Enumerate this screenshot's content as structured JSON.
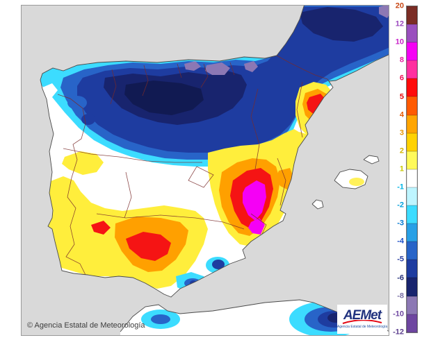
{
  "page": {
    "background_color": "#ffffff",
    "sea_color": "#d9d9d9",
    "land_color": "#ffffff"
  },
  "map": {
    "copyright": "© Agencia Estatal de Meteorología",
    "region_names": [
      "iberian-peninsula",
      "france",
      "north-africa",
      "balearic-islands"
    ]
  },
  "logo": {
    "acronym": "AEMet",
    "subtitle": "Agencia Estatal de Meteorología",
    "accent_red": "#E30613",
    "accent_blue": "#20317E"
  },
  "legend": {
    "boundary_values": [
      "20",
      "12",
      "10",
      "8",
      "6",
      "5",
      "4",
      "3",
      "2",
      "1",
      "-1",
      "-2",
      "-3",
      "-4",
      "-5",
      "-6",
      "-8",
      "-10",
      "-12"
    ],
    "label_colors": [
      "#C84614",
      "#9A46BE",
      "#C81EC8",
      "#E61EA0",
      "#F00A50",
      "#E60000",
      "#E65A00",
      "#E69600",
      "#D2B400",
      "#C8C800",
      "#00B4E6",
      "#00A0DC",
      "#0078D2",
      "#1E50C8",
      "#283CA0",
      "#232E78",
      "#786EA5",
      "#6E46A0",
      "#5A3C8C"
    ],
    "box_colors": [
      "#7B2D25",
      "#9A4FBE",
      "#F500F5",
      "#FF2FA0",
      "#FF0A0A",
      "#FF5A00",
      "#FFA500",
      "#FFD200",
      "#FFFA5A",
      "#FFFFFF",
      "#BEF5FF",
      "#3CDCFF",
      "#28A0E6",
      "#2864C8",
      "#1E3CA0",
      "#18246E",
      "#8C78B4",
      "#6E46A0"
    ]
  },
  "palette": {
    "map_bands": {
      "cyan": "#3CDCFF",
      "blue": "#2864C8",
      "navy": "#1E3CA0",
      "dark_navy": "#18246E",
      "deepest": "#111A52",
      "purple_gray": "#8C78B4",
      "yellow": "#FFEE3C",
      "orange": "#FFA000",
      "red": "#F51414",
      "magenta": "#F500F5",
      "neutral": "#FFFFFF"
    },
    "boundary_line_color": "#7A2B2B",
    "coast_color": "#4a4a4a"
  }
}
